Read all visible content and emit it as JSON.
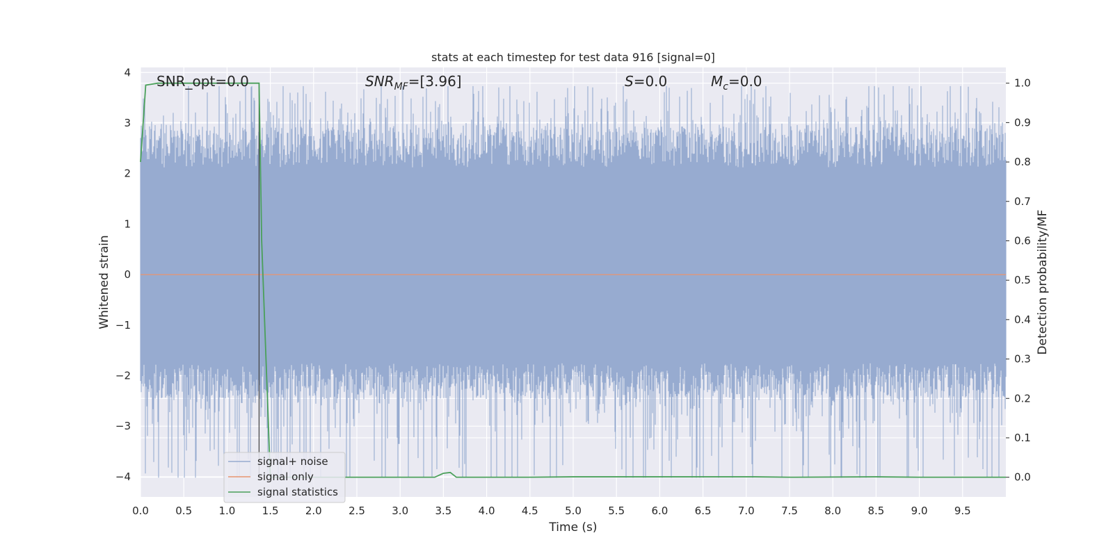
{
  "chart_data": {
    "type": "line",
    "title": "stats at each timestep for test data 916 [signal=0]",
    "xlabel": "Time (s)",
    "ylabel_left": "Whitened strain",
    "ylabel_right": "Detection probability/MF",
    "xlim": [
      0.0,
      10.0
    ],
    "ylim_left": [
      -4.4,
      4.1
    ],
    "ylim_right": [
      -0.05,
      1.04
    ],
    "x_ticks": [
      0.0,
      0.5,
      1.0,
      1.5,
      2.0,
      2.5,
      3.0,
      3.5,
      4.0,
      4.5,
      5.0,
      5.5,
      6.0,
      6.5,
      7.0,
      7.5,
      8.0,
      8.5,
      9.0,
      9.5
    ],
    "x_tick_labels": [
      "0.0",
      "0.5",
      "1.0",
      "1.5",
      "2.0",
      "2.5",
      "3.0",
      "3.5",
      "4.0",
      "4.5",
      "5.0",
      "5.5",
      "6.0",
      "6.5",
      "7.0",
      "7.5",
      "8.0",
      "8.5",
      "9.0",
      "9.5"
    ],
    "y_ticks_left": [
      -4,
      -3,
      -2,
      -1,
      0,
      1,
      2,
      3,
      4
    ],
    "y_tick_labels_left": [
      "−4",
      "−3",
      "−2",
      "−1",
      "0",
      "1",
      "2",
      "3",
      "4"
    ],
    "y_ticks_right": [
      0.0,
      0.1,
      0.2,
      0.3,
      0.4,
      0.5,
      0.6,
      0.7,
      0.8,
      0.9,
      1.0
    ],
    "y_tick_labels_right": [
      "0.0",
      "0.1",
      "0.2",
      "0.3",
      "0.4",
      "0.5",
      "0.6",
      "0.7",
      "0.8",
      "0.9",
      "1.0"
    ],
    "grid": true,
    "legend_position": "lower-left",
    "annotations": {
      "snr_opt": "SNR_opt=0.0",
      "snr_mf_label": "SNR",
      "snr_mf_sub": "MF",
      "snr_mf_value": "=[3.96]",
      "s_label": "S",
      "s_value": "=0.0",
      "mc_label": "M",
      "mc_sub": "c",
      "mc_value": "=0.0"
    },
    "marker_line_x": 1.37,
    "series": [
      {
        "name": "signal+ noise",
        "color": "#97abd0",
        "axis": "left",
        "style": "noise",
        "envelope_upper": 2.4,
        "envelope_lower": -2.0,
        "max_value": 3.73,
        "min_value": -4.02
      },
      {
        "name": "signal only",
        "color": "#e8956f",
        "axis": "left",
        "x": [
          0.0,
          10.0
        ],
        "y": [
          0.0,
          0.0
        ]
      },
      {
        "name": "signal statistics",
        "color": "#4aa05a",
        "axis": "right",
        "x": [
          0.0,
          0.06,
          0.2,
          1.0,
          1.3,
          1.37,
          1.4,
          1.5,
          1.55,
          3.4,
          3.5,
          3.58,
          3.65,
          4.5,
          5.0,
          7.1,
          7.5,
          8.5,
          9.0,
          10.0
        ],
        "y": [
          0.8,
          0.995,
          1.0,
          1.0,
          1.0,
          1.0,
          0.6,
          0.0,
          0.0,
          0.0,
          0.01,
          0.012,
          0.0,
          0.0,
          0.001,
          0.001,
          0.0,
          0.001,
          0.0,
          0.0
        ]
      }
    ]
  }
}
